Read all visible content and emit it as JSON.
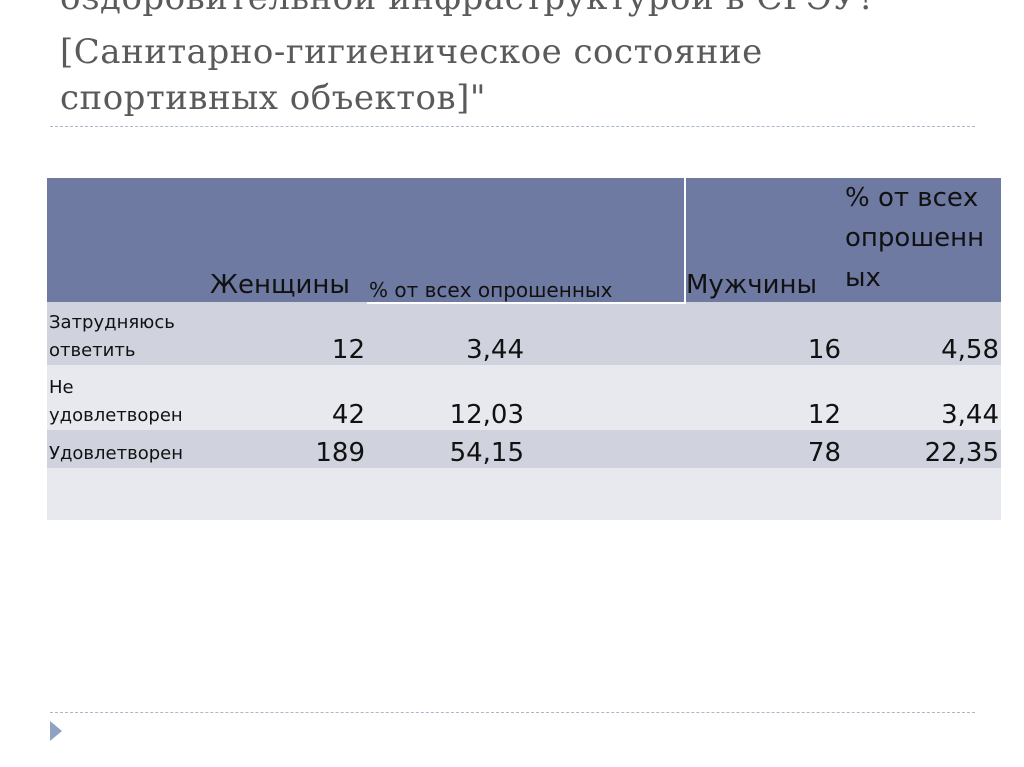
{
  "slide": {
    "title_lines": [
      "оздоровительной инфраструктурой в СГЭУ?",
      "[Санитарно-гигиеническое состояние",
      "спортивных объектов]\""
    ],
    "table": {
      "header": {
        "women": "Женщины",
        "women_pct": "% от всех опрошенных",
        "men": "Мужчины",
        "men_pct": "% от всех опрошенных"
      },
      "rows": [
        {
          "label": "Затрудняюсь ответить",
          "women": "12",
          "women_pct": "3,44",
          "men": "16",
          "men_pct": "4,58"
        },
        {
          "label": "Не удовлетворен",
          "women": "42",
          "women_pct": "12,03",
          "men": "12",
          "men_pct": "3,44"
        },
        {
          "label": "Удовлетворен",
          "women": "189",
          "women_pct": "54,15",
          "men": "78",
          "men_pct": "22,35"
        }
      ]
    }
  }
}
